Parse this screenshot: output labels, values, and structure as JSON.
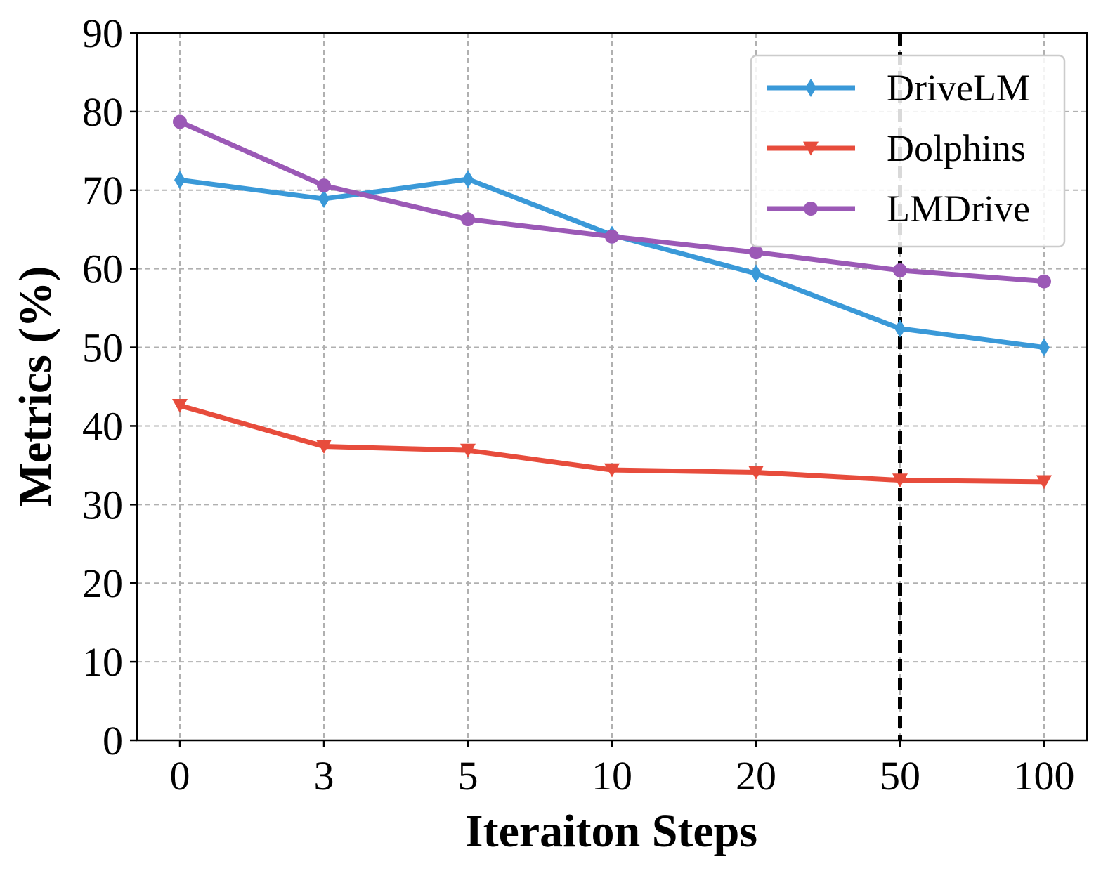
{
  "chart_data": {
    "type": "line",
    "title": "",
    "xlabel": "Iteraiton Steps",
    "ylabel": "Metrics (%)",
    "categories": [
      "0",
      "3",
      "5",
      "10",
      "20",
      "50",
      "100"
    ],
    "ylim": [
      0,
      90
    ],
    "yticks": [
      "0",
      "10",
      "20",
      "30",
      "40",
      "50",
      "60",
      "70",
      "80",
      "90"
    ],
    "grid": true,
    "legend_position": "top-right",
    "reference_line": {
      "category": "50",
      "style": "dashed",
      "color": "#000000"
    },
    "series": [
      {
        "name": "DriveLM",
        "color": "#3a99d8",
        "marker": "thin-diamond",
        "values": [
          71.3,
          68.9,
          71.4,
          64.3,
          59.4,
          52.4,
          50.0
        ]
      },
      {
        "name": "Dolphins",
        "color": "#e74c3c",
        "marker": "triangle-down",
        "values": [
          42.6,
          37.4,
          36.9,
          34.4,
          34.1,
          33.1,
          32.9
        ]
      },
      {
        "name": "LMDrive",
        "color": "#9b59b6",
        "marker": "circle",
        "values": [
          78.7,
          70.6,
          66.3,
          64.1,
          62.1,
          59.8,
          58.4
        ]
      }
    ]
  }
}
